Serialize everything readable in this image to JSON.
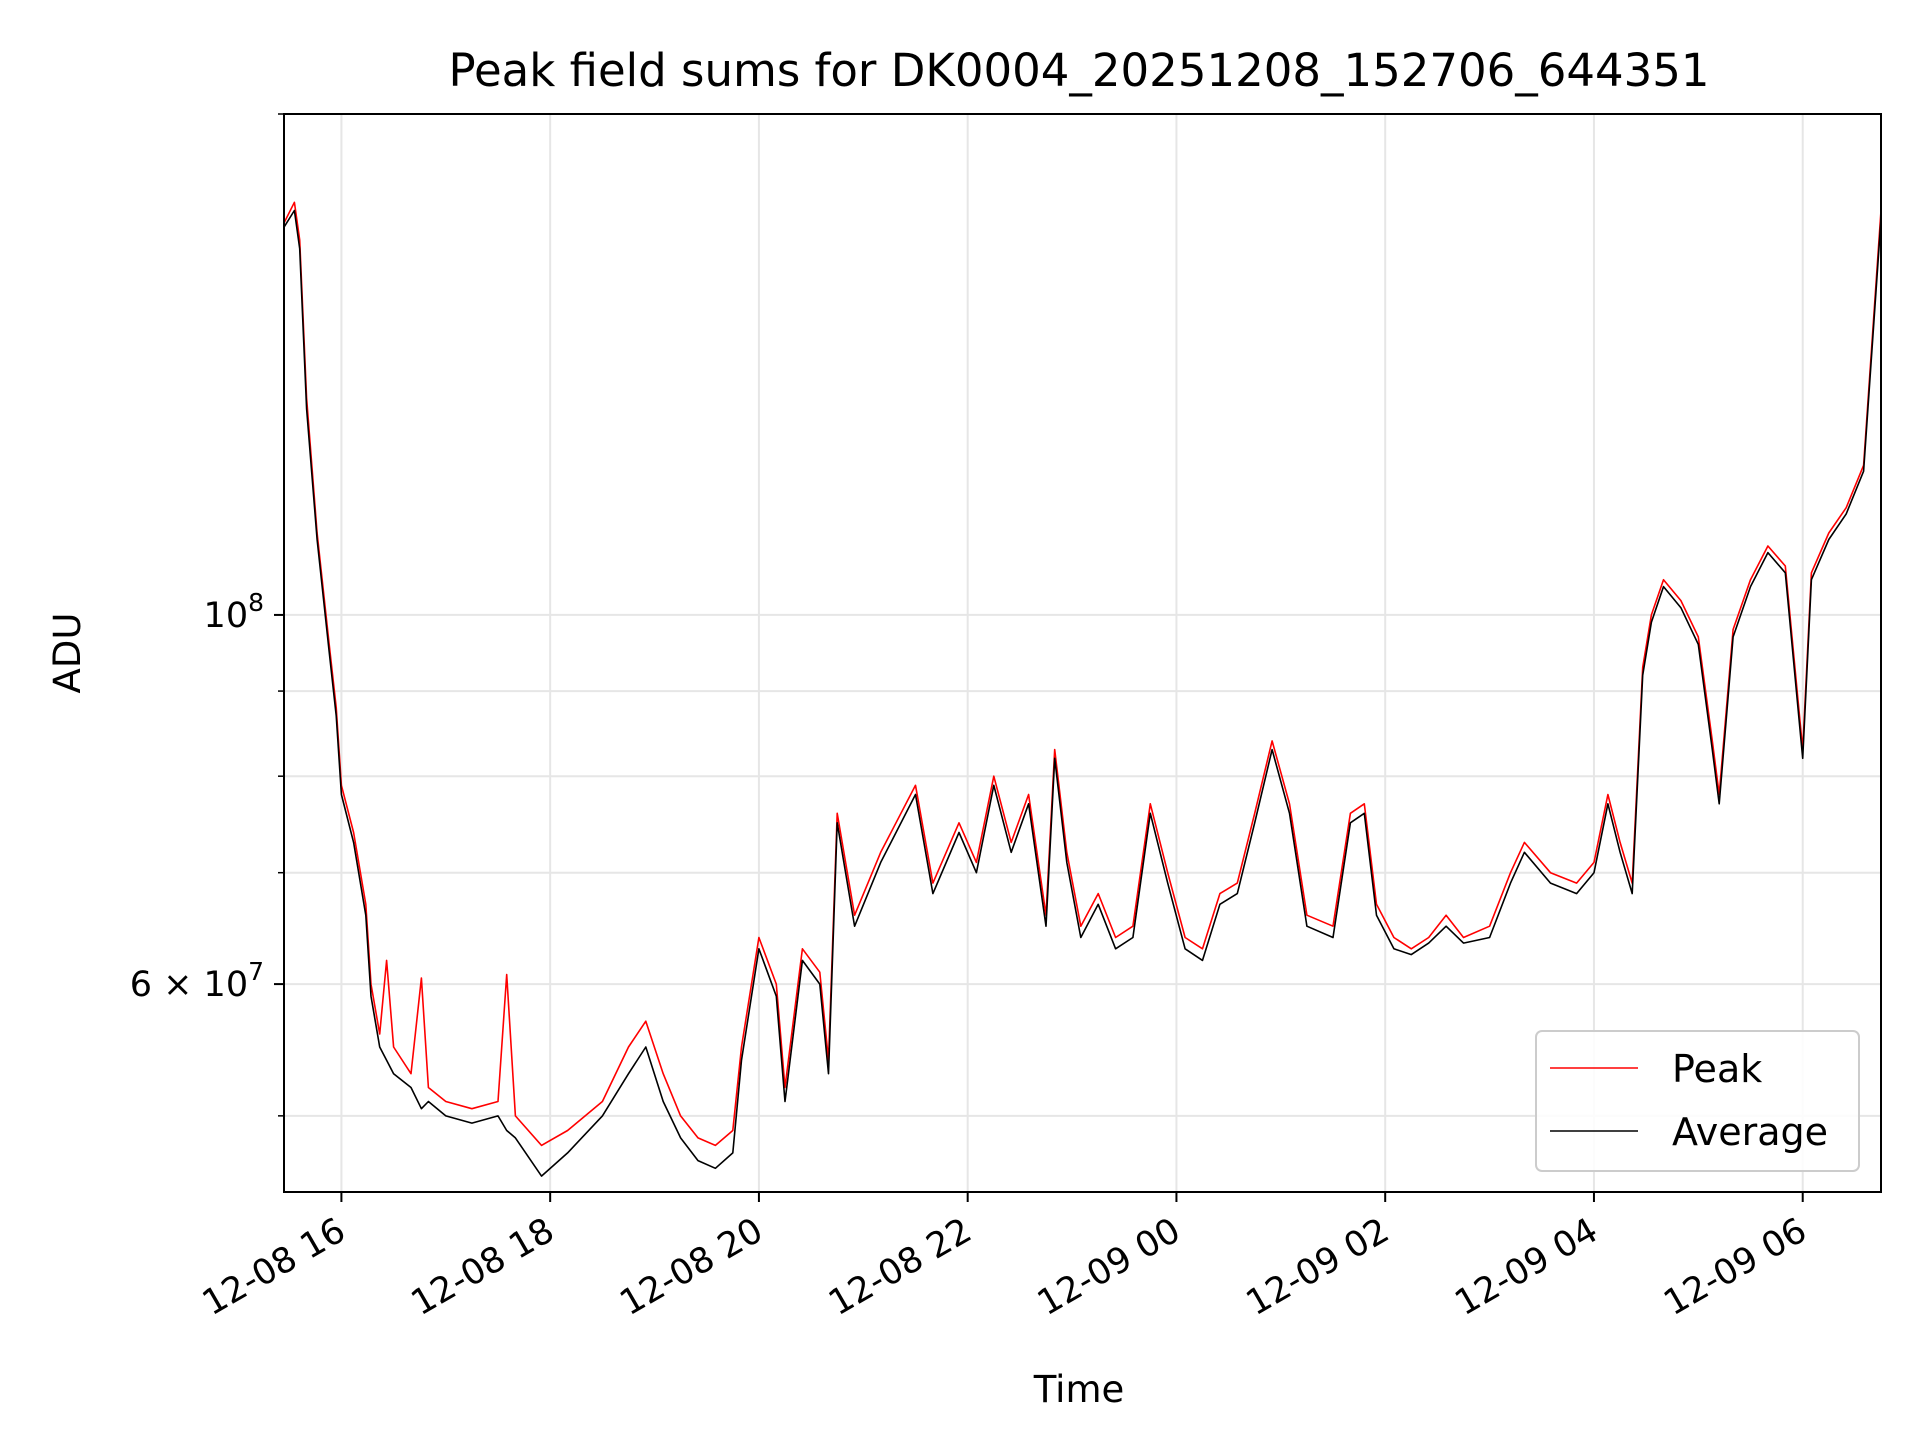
{
  "chart_data": {
    "type": "line",
    "title": "Peak field sums for DK0004_20251208_152706_644351",
    "xlabel": "Time",
    "ylabel": "ADU",
    "yscale": "log",
    "xlim": [
      "2025-12-08 15:27",
      "2025-12-09 06:45"
    ],
    "ylim": [
      45000000,
      200000000
    ],
    "grid": true,
    "legend_position": "lower-right",
    "x_ticks": [
      {
        "value": "2025-12-08 16:00",
        "label": "12-08 16"
      },
      {
        "value": "2025-12-08 18:00",
        "label": "12-08 18"
      },
      {
        "value": "2025-12-08 20:00",
        "label": "12-08 20"
      },
      {
        "value": "2025-12-08 22:00",
        "label": "12-08 22"
      },
      {
        "value": "2025-12-09 00:00",
        "label": "12-09 00"
      },
      {
        "value": "2025-12-09 02:00",
        "label": "12-09 02"
      },
      {
        "value": "2025-12-09 04:00",
        "label": "12-09 04"
      },
      {
        "value": "2025-12-09 06:00",
        "label": "12-09 06"
      }
    ],
    "y_major_ticks": [
      {
        "value": 60000000,
        "label_base": "6 × 10",
        "label_exp": "7"
      },
      {
        "value": 100000000,
        "label_base": "10",
        "label_exp": "8"
      }
    ],
    "y_minor_ticks": [
      50000000,
      70000000,
      80000000,
      90000000,
      200000000
    ],
    "series": [
      {
        "name": "Peak",
        "color": "#ff0000",
        "points": [
          [
            "2025-12-08 15:27",
            172000000
          ],
          [
            "2025-12-08 15:33",
            177000000
          ],
          [
            "2025-12-08 15:36",
            168000000
          ],
          [
            "2025-12-08 15:40",
            135000000
          ],
          [
            "2025-12-08 15:46",
            112000000
          ],
          [
            "2025-12-08 15:53",
            96000000
          ],
          [
            "2025-12-08 15:57",
            88000000
          ],
          [
            "2025-12-08 16:00",
            79000000
          ],
          [
            "2025-12-08 16:07",
            74000000
          ],
          [
            "2025-12-08 16:14",
            67000000
          ],
          [
            "2025-12-08 16:17",
            60000000
          ],
          [
            "2025-12-08 16:22",
            56000000
          ],
          [
            "2025-12-08 16:26",
            62000000
          ],
          [
            "2025-12-08 16:30",
            55000000
          ],
          [
            "2025-12-08 16:40",
            53000000
          ],
          [
            "2025-12-08 16:46",
            60500000
          ],
          [
            "2025-12-08 16:50",
            52000000
          ],
          [
            "2025-12-08 17:00",
            51000000
          ],
          [
            "2025-12-08 17:15",
            50500000
          ],
          [
            "2025-12-08 17:30",
            51000000
          ],
          [
            "2025-12-08 17:35",
            60800000
          ],
          [
            "2025-12-08 17:40",
            50000000
          ],
          [
            "2025-12-08 17:55",
            48000000
          ],
          [
            "2025-12-08 18:10",
            49000000
          ],
          [
            "2025-12-08 18:30",
            51000000
          ],
          [
            "2025-12-08 18:45",
            55000000
          ],
          [
            "2025-12-08 18:55",
            57000000
          ],
          [
            "2025-12-08 19:05",
            53000000
          ],
          [
            "2025-12-08 19:15",
            50000000
          ],
          [
            "2025-12-08 19:25",
            48500000
          ],
          [
            "2025-12-08 19:35",
            48000000
          ],
          [
            "2025-12-08 19:45",
            49000000
          ],
          [
            "2025-12-08 19:50",
            55000000
          ],
          [
            "2025-12-08 20:00",
            64000000
          ],
          [
            "2025-12-08 20:10",
            60000000
          ],
          [
            "2025-12-08 20:15",
            52000000
          ],
          [
            "2025-12-08 20:25",
            63000000
          ],
          [
            "2025-12-08 20:35",
            61000000
          ],
          [
            "2025-12-08 20:40",
            54000000
          ],
          [
            "2025-12-08 20:45",
            76000000
          ],
          [
            "2025-12-08 20:55",
            66000000
          ],
          [
            "2025-12-08 21:10",
            72000000
          ],
          [
            "2025-12-08 21:30",
            79000000
          ],
          [
            "2025-12-08 21:40",
            69000000
          ],
          [
            "2025-12-08 21:55",
            75000000
          ],
          [
            "2025-12-08 22:05",
            71000000
          ],
          [
            "2025-12-08 22:15",
            80000000
          ],
          [
            "2025-12-08 22:25",
            73000000
          ],
          [
            "2025-12-08 22:35",
            78000000
          ],
          [
            "2025-12-08 22:45",
            66000000
          ],
          [
            "2025-12-08 22:50",
            83000000
          ],
          [
            "2025-12-08 22:57",
            72000000
          ],
          [
            "2025-12-08 23:05",
            65000000
          ],
          [
            "2025-12-08 23:15",
            68000000
          ],
          [
            "2025-12-08 23:25",
            64000000
          ],
          [
            "2025-12-08 23:35",
            65000000
          ],
          [
            "2025-12-08 23:45",
            77000000
          ],
          [
            "2025-12-08 23:55",
            70000000
          ],
          [
            "2025-12-09 00:05",
            64000000
          ],
          [
            "2025-12-09 00:15",
            63000000
          ],
          [
            "2025-12-09 00:25",
            68000000
          ],
          [
            "2025-12-09 00:35",
            69000000
          ],
          [
            "2025-12-09 00:45",
            76000000
          ],
          [
            "2025-12-09 00:55",
            84000000
          ],
          [
            "2025-12-09 01:05",
            77000000
          ],
          [
            "2025-12-09 01:15",
            66000000
          ],
          [
            "2025-12-09 01:30",
            65000000
          ],
          [
            "2025-12-09 01:40",
            76000000
          ],
          [
            "2025-12-09 01:48",
            77000000
          ],
          [
            "2025-12-09 01:55",
            67000000
          ],
          [
            "2025-12-09 02:05",
            64000000
          ],
          [
            "2025-12-09 02:15",
            63000000
          ],
          [
            "2025-12-09 02:25",
            64000000
          ],
          [
            "2025-12-09 02:35",
            66000000
          ],
          [
            "2025-12-09 02:45",
            64000000
          ],
          [
            "2025-12-09 03:00",
            65000000
          ],
          [
            "2025-12-09 03:12",
            70000000
          ],
          [
            "2025-12-09 03:20",
            73000000
          ],
          [
            "2025-12-09 03:35",
            70000000
          ],
          [
            "2025-12-09 03:50",
            69000000
          ],
          [
            "2025-12-09 04:00",
            71000000
          ],
          [
            "2025-12-09 04:08",
            78000000
          ],
          [
            "2025-12-09 04:15",
            73000000
          ],
          [
            "2025-12-09 04:22",
            69000000
          ],
          [
            "2025-12-09 04:28",
            93000000
          ],
          [
            "2025-12-09 04:33",
            100000000
          ],
          [
            "2025-12-09 04:40",
            105000000
          ],
          [
            "2025-12-09 04:50",
            102000000
          ],
          [
            "2025-12-09 05:00",
            97000000
          ],
          [
            "2025-12-09 05:08",
            84000000
          ],
          [
            "2025-12-09 05:12",
            78000000
          ],
          [
            "2025-12-09 05:20",
            98000000
          ],
          [
            "2025-12-09 05:30",
            105000000
          ],
          [
            "2025-12-09 05:40",
            110000000
          ],
          [
            "2025-12-09 05:50",
            107000000
          ],
          [
            "2025-12-09 06:00",
            83000000
          ],
          [
            "2025-12-09 06:05",
            106000000
          ],
          [
            "2025-12-09 06:15",
            112000000
          ],
          [
            "2025-12-09 06:25",
            116000000
          ],
          [
            "2025-12-09 06:35",
            123000000
          ],
          [
            "2025-12-09 06:45",
            175000000
          ]
        ]
      },
      {
        "name": "Average",
        "color": "#000000",
        "points": [
          [
            "2025-12-08 15:27",
            171000000
          ],
          [
            "2025-12-08 15:33",
            175000000
          ],
          [
            "2025-12-08 15:36",
            166000000
          ],
          [
            "2025-12-08 15:40",
            133000000
          ],
          [
            "2025-12-08 15:46",
            111000000
          ],
          [
            "2025-12-08 15:53",
            95000000
          ],
          [
            "2025-12-08 15:57",
            87000000
          ],
          [
            "2025-12-08 16:00",
            78000000
          ],
          [
            "2025-12-08 16:07",
            73000000
          ],
          [
            "2025-12-08 16:14",
            66000000
          ],
          [
            "2025-12-08 16:17",
            59000000
          ],
          [
            "2025-12-08 16:22",
            55000000
          ],
          [
            "2025-12-08 16:26",
            54000000
          ],
          [
            "2025-12-08 16:30",
            53000000
          ],
          [
            "2025-12-08 16:40",
            52000000
          ],
          [
            "2025-12-08 16:46",
            50500000
          ],
          [
            "2025-12-08 16:50",
            51000000
          ],
          [
            "2025-12-08 17:00",
            50000000
          ],
          [
            "2025-12-08 17:15",
            49500000
          ],
          [
            "2025-12-08 17:30",
            50000000
          ],
          [
            "2025-12-08 17:35",
            49000000
          ],
          [
            "2025-12-08 17:40",
            48500000
          ],
          [
            "2025-12-08 17:55",
            46000000
          ],
          [
            "2025-12-08 18:10",
            47500000
          ],
          [
            "2025-12-08 18:30",
            50000000
          ],
          [
            "2025-12-08 18:45",
            53000000
          ],
          [
            "2025-12-08 18:55",
            55000000
          ],
          [
            "2025-12-08 19:05",
            51000000
          ],
          [
            "2025-12-08 19:15",
            48500000
          ],
          [
            "2025-12-08 19:25",
            47000000
          ],
          [
            "2025-12-08 19:35",
            46500000
          ],
          [
            "2025-12-08 19:45",
            47500000
          ],
          [
            "2025-12-08 19:50",
            54000000
          ],
          [
            "2025-12-08 20:00",
            63000000
          ],
          [
            "2025-12-08 20:10",
            59000000
          ],
          [
            "2025-12-08 20:15",
            51000000
          ],
          [
            "2025-12-08 20:25",
            62000000
          ],
          [
            "2025-12-08 20:35",
            60000000
          ],
          [
            "2025-12-08 20:40",
            53000000
          ],
          [
            "2025-12-08 20:45",
            75000000
          ],
          [
            "2025-12-08 20:55",
            65000000
          ],
          [
            "2025-12-08 21:10",
            71000000
          ],
          [
            "2025-12-08 21:30",
            78000000
          ],
          [
            "2025-12-08 21:40",
            68000000
          ],
          [
            "2025-12-08 21:55",
            74000000
          ],
          [
            "2025-12-08 22:05",
            70000000
          ],
          [
            "2025-12-08 22:15",
            79000000
          ],
          [
            "2025-12-08 22:25",
            72000000
          ],
          [
            "2025-12-08 22:35",
            77000000
          ],
          [
            "2025-12-08 22:45",
            65000000
          ],
          [
            "2025-12-08 22:50",
            82000000
          ],
          [
            "2025-12-08 22:57",
            71000000
          ],
          [
            "2025-12-08 23:05",
            64000000
          ],
          [
            "2025-12-08 23:15",
            67000000
          ],
          [
            "2025-12-08 23:25",
            63000000
          ],
          [
            "2025-12-08 23:35",
            64000000
          ],
          [
            "2025-12-08 23:45",
            76000000
          ],
          [
            "2025-12-08 23:55",
            69000000
          ],
          [
            "2025-12-09 00:05",
            63000000
          ],
          [
            "2025-12-09 00:15",
            62000000
          ],
          [
            "2025-12-09 00:25",
            67000000
          ],
          [
            "2025-12-09 00:35",
            68000000
          ],
          [
            "2025-12-09 00:45",
            75000000
          ],
          [
            "2025-12-09 00:55",
            83000000
          ],
          [
            "2025-12-09 01:05",
            76000000
          ],
          [
            "2025-12-09 01:15",
            65000000
          ],
          [
            "2025-12-09 01:30",
            64000000
          ],
          [
            "2025-12-09 01:40",
            75000000
          ],
          [
            "2025-12-09 01:48",
            76000000
          ],
          [
            "2025-12-09 01:55",
            66000000
          ],
          [
            "2025-12-09 02:05",
            63000000
          ],
          [
            "2025-12-09 02:15",
            62500000
          ],
          [
            "2025-12-09 02:25",
            63500000
          ],
          [
            "2025-12-09 02:35",
            65000000
          ],
          [
            "2025-12-09 02:45",
            63500000
          ],
          [
            "2025-12-09 03:00",
            64000000
          ],
          [
            "2025-12-09 03:12",
            69000000
          ],
          [
            "2025-12-09 03:20",
            72000000
          ],
          [
            "2025-12-09 03:35",
            69000000
          ],
          [
            "2025-12-09 03:50",
            68000000
          ],
          [
            "2025-12-09 04:00",
            70000000
          ],
          [
            "2025-12-09 04:08",
            77000000
          ],
          [
            "2025-12-09 04:15",
            72000000
          ],
          [
            "2025-12-09 04:22",
            68000000
          ],
          [
            "2025-12-09 04:28",
            92000000
          ],
          [
            "2025-12-09 04:33",
            99000000
          ],
          [
            "2025-12-09 04:40",
            104000000
          ],
          [
            "2025-12-09 04:50",
            101000000
          ],
          [
            "2025-12-09 05:00",
            96000000
          ],
          [
            "2025-12-09 05:08",
            83000000
          ],
          [
            "2025-12-09 05:12",
            77000000
          ],
          [
            "2025-12-09 05:20",
            97000000
          ],
          [
            "2025-12-09 05:30",
            104000000
          ],
          [
            "2025-12-09 05:40",
            109000000
          ],
          [
            "2025-12-09 05:50",
            106000000
          ],
          [
            "2025-12-09 06:00",
            82000000
          ],
          [
            "2025-12-09 06:05",
            105000000
          ],
          [
            "2025-12-09 06:15",
            111000000
          ],
          [
            "2025-12-09 06:25",
            115000000
          ],
          [
            "2025-12-09 06:35",
            122000000
          ],
          [
            "2025-12-09 06:45",
            173000000
          ]
        ]
      }
    ]
  }
}
